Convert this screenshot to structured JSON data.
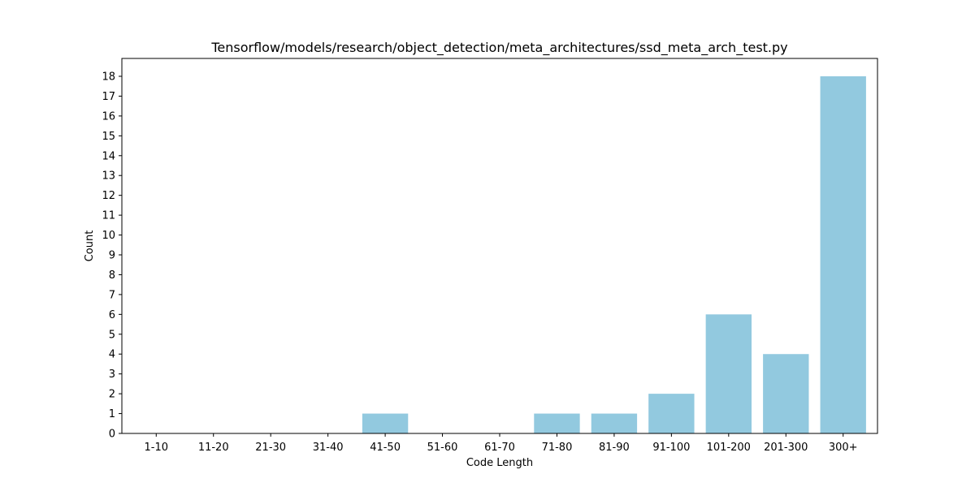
{
  "chart_data": {
    "type": "bar",
    "title": "Tensorflow/models/research/object_detection/meta_architectures/ssd_meta_arch_test.py",
    "xlabel": "Code Length",
    "ylabel": "Count",
    "categories": [
      "1-10",
      "11-20",
      "21-30",
      "31-40",
      "41-50",
      "51-60",
      "61-70",
      "71-80",
      "81-90",
      "91-100",
      "101-200",
      "201-300",
      "300+"
    ],
    "values": [
      0,
      0,
      0,
      0,
      1,
      0,
      0,
      1,
      1,
      2,
      6,
      4,
      18
    ],
    "ylim": [
      0,
      18.9
    ],
    "yticks": [
      0,
      1,
      2,
      3,
      4,
      5,
      6,
      7,
      8,
      9,
      10,
      11,
      12,
      13,
      14,
      15,
      16,
      17,
      18
    ],
    "grid": false,
    "bar_color": "#92c9df"
  }
}
